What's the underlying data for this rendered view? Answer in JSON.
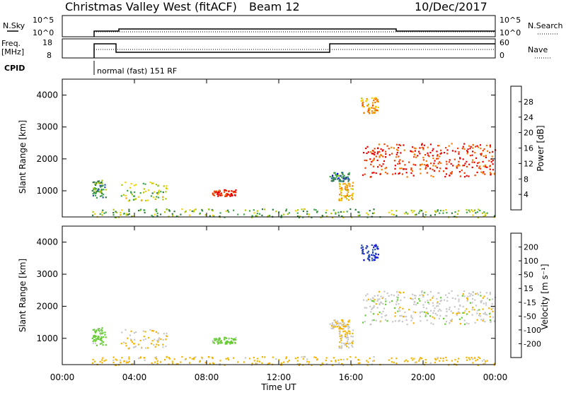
{
  "header": {
    "station": "Christmas Valley West (fitACF)",
    "beam": "Beam 12",
    "date": "10/Dec/2017"
  },
  "noise_panel": {
    "left_label": "N.Sky",
    "right_label": "N.Search",
    "left_ticks": [
      "10^5",
      "10^0"
    ],
    "right_ticks": [
      "10^5",
      "10^0"
    ]
  },
  "freq_panel": {
    "left_label_1": "Freq.",
    "left_label_2": "[MHz]",
    "right_label": "Nave",
    "left_ticks": [
      "18",
      "8"
    ],
    "right_ticks": [
      "60",
      "0"
    ]
  },
  "cpid": {
    "label": "CPID",
    "mode": "normal (fast) 151 RF"
  },
  "power_panel": {
    "ylabel": "Slant Range [km]",
    "yticks": [
      "4000",
      "3000",
      "2000",
      "1000"
    ],
    "colorbar_label": "Power [dB]",
    "colorbar_ticks": [
      "28",
      "24",
      "20",
      "16",
      "12",
      "8",
      "4"
    ],
    "colors": [
      "#0000ff",
      "#2a4fa8",
      "#2f7a3c",
      "#3da64a",
      "#b0c800",
      "#f2d200",
      "#f5a000",
      "#f57a00",
      "#f04000",
      "#e80000"
    ]
  },
  "velocity_panel": {
    "ylabel": "Slant Range [km]",
    "yticks": [
      "4000",
      "3000",
      "2000",
      "1000"
    ],
    "colorbar_label": "Velocity [m s⁻¹]",
    "colorbar_ticks": [
      "200",
      "100",
      "50",
      "15",
      "-15",
      "-50",
      "-100",
      "-200"
    ],
    "colors": [
      "#1a1ad8",
      "#2a4fa8",
      "#2f7a3c",
      "#66cc33",
      "#c8c8c8",
      "#f5b400",
      "#f58a00",
      "#f05a00",
      "#e80000"
    ]
  },
  "x_axis": {
    "label": "Time UT",
    "ticks": [
      "00:00",
      "04:00",
      "08:00",
      "12:00",
      "16:00",
      "20:00",
      "00:00"
    ]
  },
  "chart_data": {
    "type": "heatmap",
    "x_range_hours": [
      0,
      24
    ],
    "y_range_km": [
      180,
      4500
    ],
    "scatter_regions": [
      {
        "t0": 1.6,
        "t1": 2.4,
        "r0": 800,
        "r1": 1350,
        "power": 10,
        "velocity": 30
      },
      {
        "t0": 3.2,
        "t1": 5.8,
        "r0": 700,
        "r1": 1300,
        "power": 14,
        "velocity": -15
      },
      {
        "t0": 8.3,
        "t1": 9.6,
        "r0": 850,
        "r1": 1050,
        "power": 27,
        "velocity": 30
      },
      {
        "t0": 15.3,
        "t1": 16.1,
        "r0": 700,
        "r1": 1300,
        "power": 19,
        "velocity": -15
      },
      {
        "t0": 14.8,
        "t1": 15.9,
        "r0": 1300,
        "r1": 1600,
        "power": 8,
        "velocity": -15
      },
      {
        "t0": 16.5,
        "t1": 17.5,
        "r0": 3450,
        "r1": 3950,
        "power": 20,
        "velocity": 200
      },
      {
        "t0": 16.6,
        "t1": 24.0,
        "r0": 1450,
        "r1": 2500,
        "power": 27,
        "velocity": 0
      },
      {
        "t0": 1.6,
        "t1": 24.0,
        "r0": 180,
        "r1": 450,
        "power": 12,
        "velocity": -30
      }
    ]
  }
}
